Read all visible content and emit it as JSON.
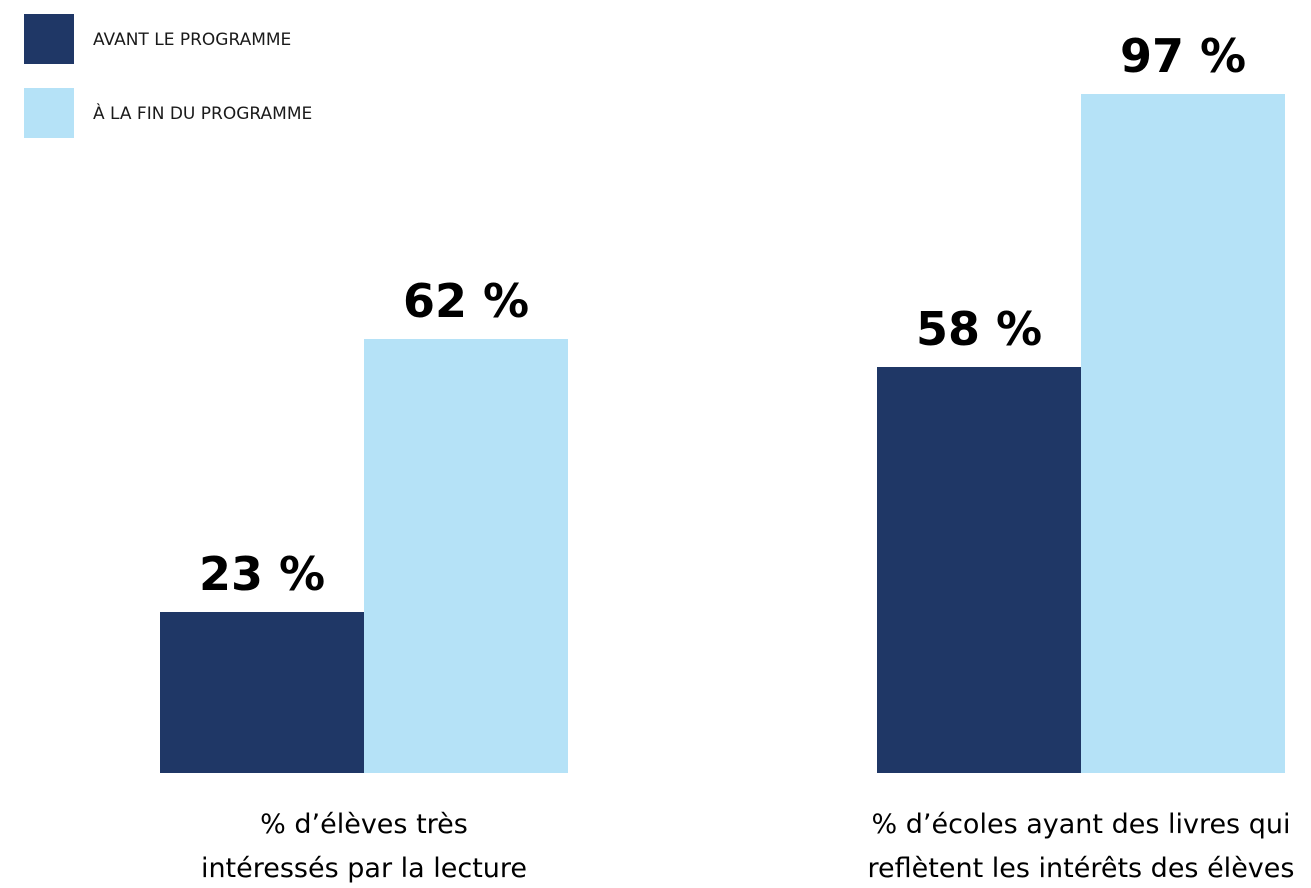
{
  "chart_data": {
    "type": "bar",
    "categories": [
      [
        "% d’élèves très",
        "intéressés par la lecture"
      ],
      [
        "% d’écoles ayant des livres qui",
        "reflètent les intérêts des élèves"
      ]
    ],
    "series": [
      {
        "name": "AVANT LE PROGRAMME",
        "color": "#1f3766",
        "values": [
          23,
          58
        ],
        "labels": [
          "23 %",
          "58 %"
        ]
      },
      {
        "name": "À LA FIN DU PROGRAMME",
        "color": "#b5e2f7",
        "values": [
          62,
          97
        ],
        "labels": [
          "62 %",
          "97 %"
        ]
      }
    ],
    "ylim": [
      0,
      100
    ],
    "grid": false,
    "legend_position": "top-left"
  }
}
